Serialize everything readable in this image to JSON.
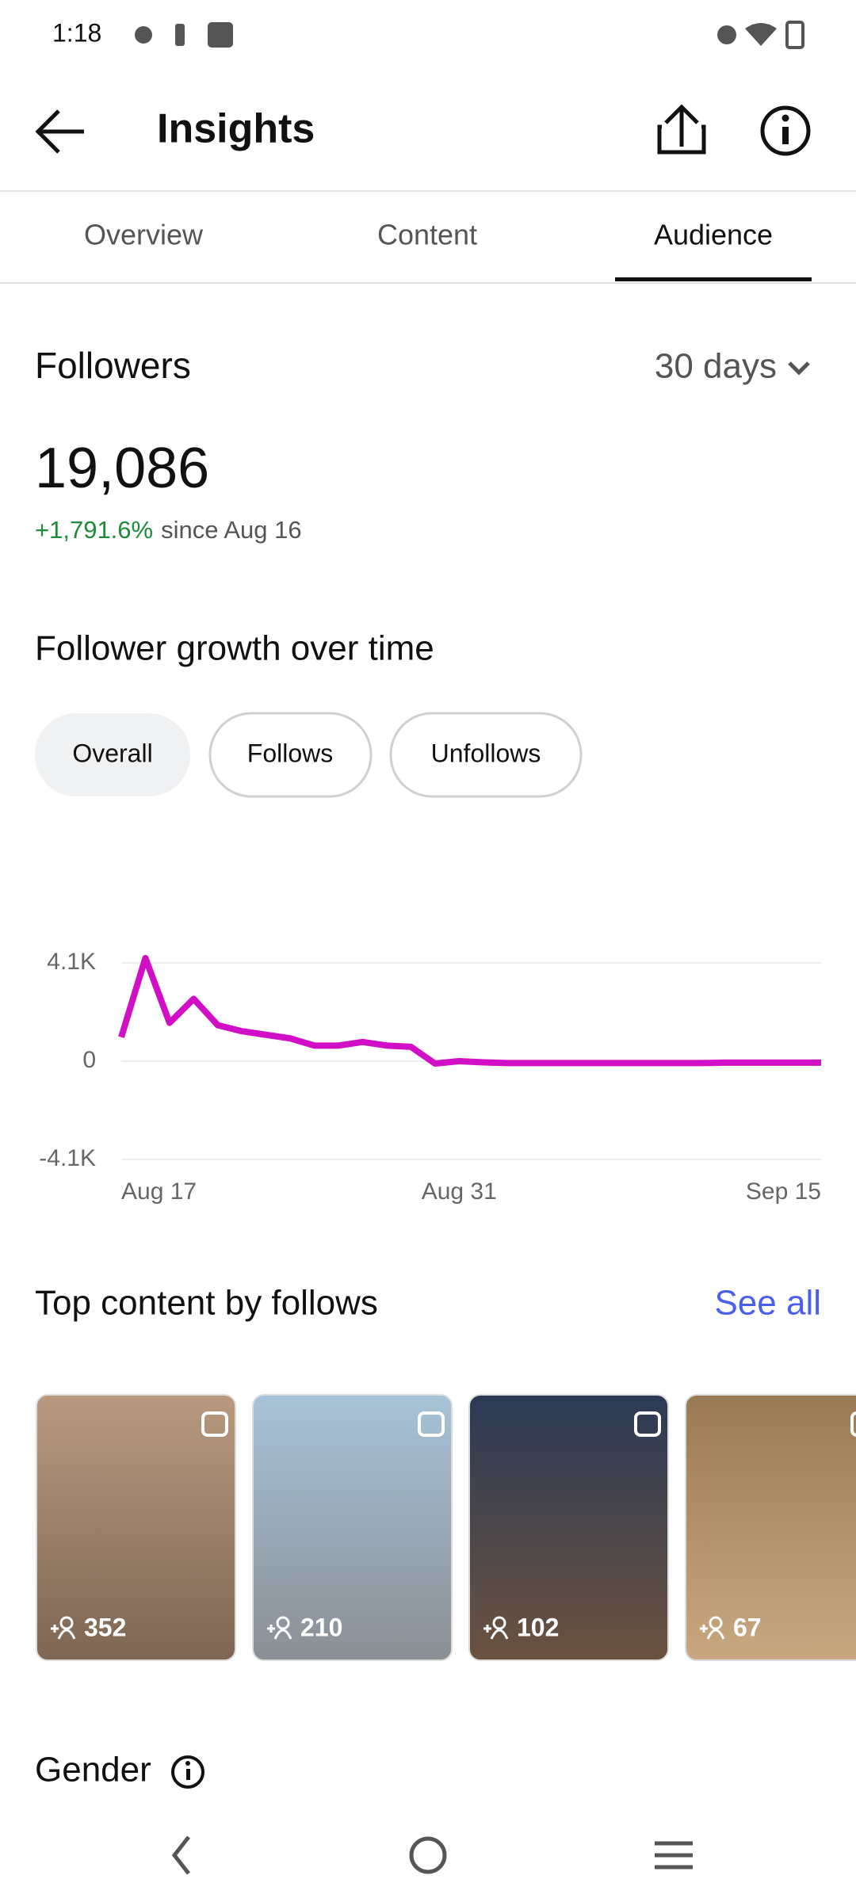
{
  "status_bar": {
    "time": "1:18"
  },
  "header": {
    "title": "Insights"
  },
  "tabs": [
    "Overview",
    "Content",
    "Audience"
  ],
  "followers": {
    "title": "Followers",
    "range": "30 days",
    "total": "19,086",
    "change": "+1,791.6%",
    "since": "since Aug 16"
  },
  "growth": {
    "title": "Follower growth over time",
    "filters": [
      "Overall",
      "Follows",
      "Unfollows"
    ]
  },
  "chart_data": {
    "type": "line",
    "categories": [
      "Aug 17",
      null,
      null,
      null,
      null,
      null,
      null,
      null,
      null,
      null,
      null,
      null,
      null,
      null,
      "Aug 31",
      null,
      null,
      null,
      null,
      null,
      null,
      null,
      null,
      null,
      null,
      null,
      null,
      null,
      null,
      "Sep 15"
    ],
    "values": [
      1000,
      4300,
      1600,
      2600,
      1500,
      1250,
      1100,
      950,
      650,
      650,
      800,
      650,
      600,
      -100,
      0,
      -50,
      -80,
      -80,
      -80,
      -80,
      -80,
      -80,
      -80,
      -80,
      -80,
      -60,
      -60,
      -60,
      -60,
      -60
    ],
    "color": "#d10fc7",
    "ylim": [
      -4100,
      4100
    ],
    "yticks": [
      {
        "value": -4100,
        "label": "-4.1K"
      },
      0,
      {
        "value": 4100,
        "label": "4.1K"
      }
    ],
    "grid": true
  },
  "top_content": {
    "title": "Top content by follows",
    "link": "See all",
    "items": [
      "352",
      "210",
      "102",
      "67"
    ]
  },
  "gender": {
    "title": "Gender"
  }
}
